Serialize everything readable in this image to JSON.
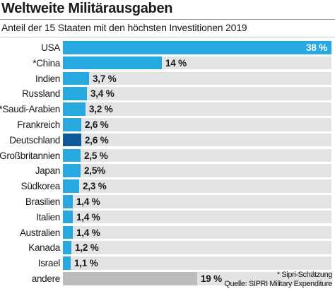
{
  "header": {
    "title": "Weltweite Militärausgaben",
    "subtitle": "Anteil der 15 Staaten mit den höchsten Investitionen 2019"
  },
  "footer": {
    "note": "* Sipri-Schätzung",
    "source": "Quelle: SIPRI Military Expenditure"
  },
  "colors": {
    "bar": "#27a8de",
    "highlight": "#0f5a9a",
    "other": "#bcbcbc",
    "track": "#e2e3e5"
  },
  "chart_data": {
    "type": "bar",
    "orientation": "horizontal",
    "unit": "%",
    "xlim": [
      0,
      38
    ],
    "grid": false,
    "title": "Weltweite Militärausgaben",
    "subtitle": "Anteil der 15 Staaten mit den höchsten Investitionen 2019",
    "categories": [
      "USA",
      "*China",
      "Indien",
      "Russland",
      "*Saudi-Arabien",
      "Frankreich",
      "Deutschland",
      "Großbritannien",
      "Japan",
      "Südkorea",
      "Brasilien",
      "Italien",
      "Australien",
      "Kanada",
      "Israel",
      "andere"
    ],
    "values": [
      38,
      14,
      3.7,
      3.4,
      3.2,
      2.6,
      2.6,
      2.5,
      2.5,
      2.3,
      1.4,
      1.4,
      1.4,
      1.2,
      1.1,
      19
    ],
    "value_labels": [
      "38 %",
      "14 %",
      "3,7 %",
      "3,4 %",
      "3,2 %",
      "2,6 %",
      "2,6 %",
      "2,5 %",
      "2,5%",
      "2,3 %",
      "1,4 %",
      "1,4 %",
      "1,4 %",
      "1,2 %",
      "1,1 %",
      "19 %"
    ],
    "highlight": "Deutschland",
    "other_category": "andere"
  }
}
